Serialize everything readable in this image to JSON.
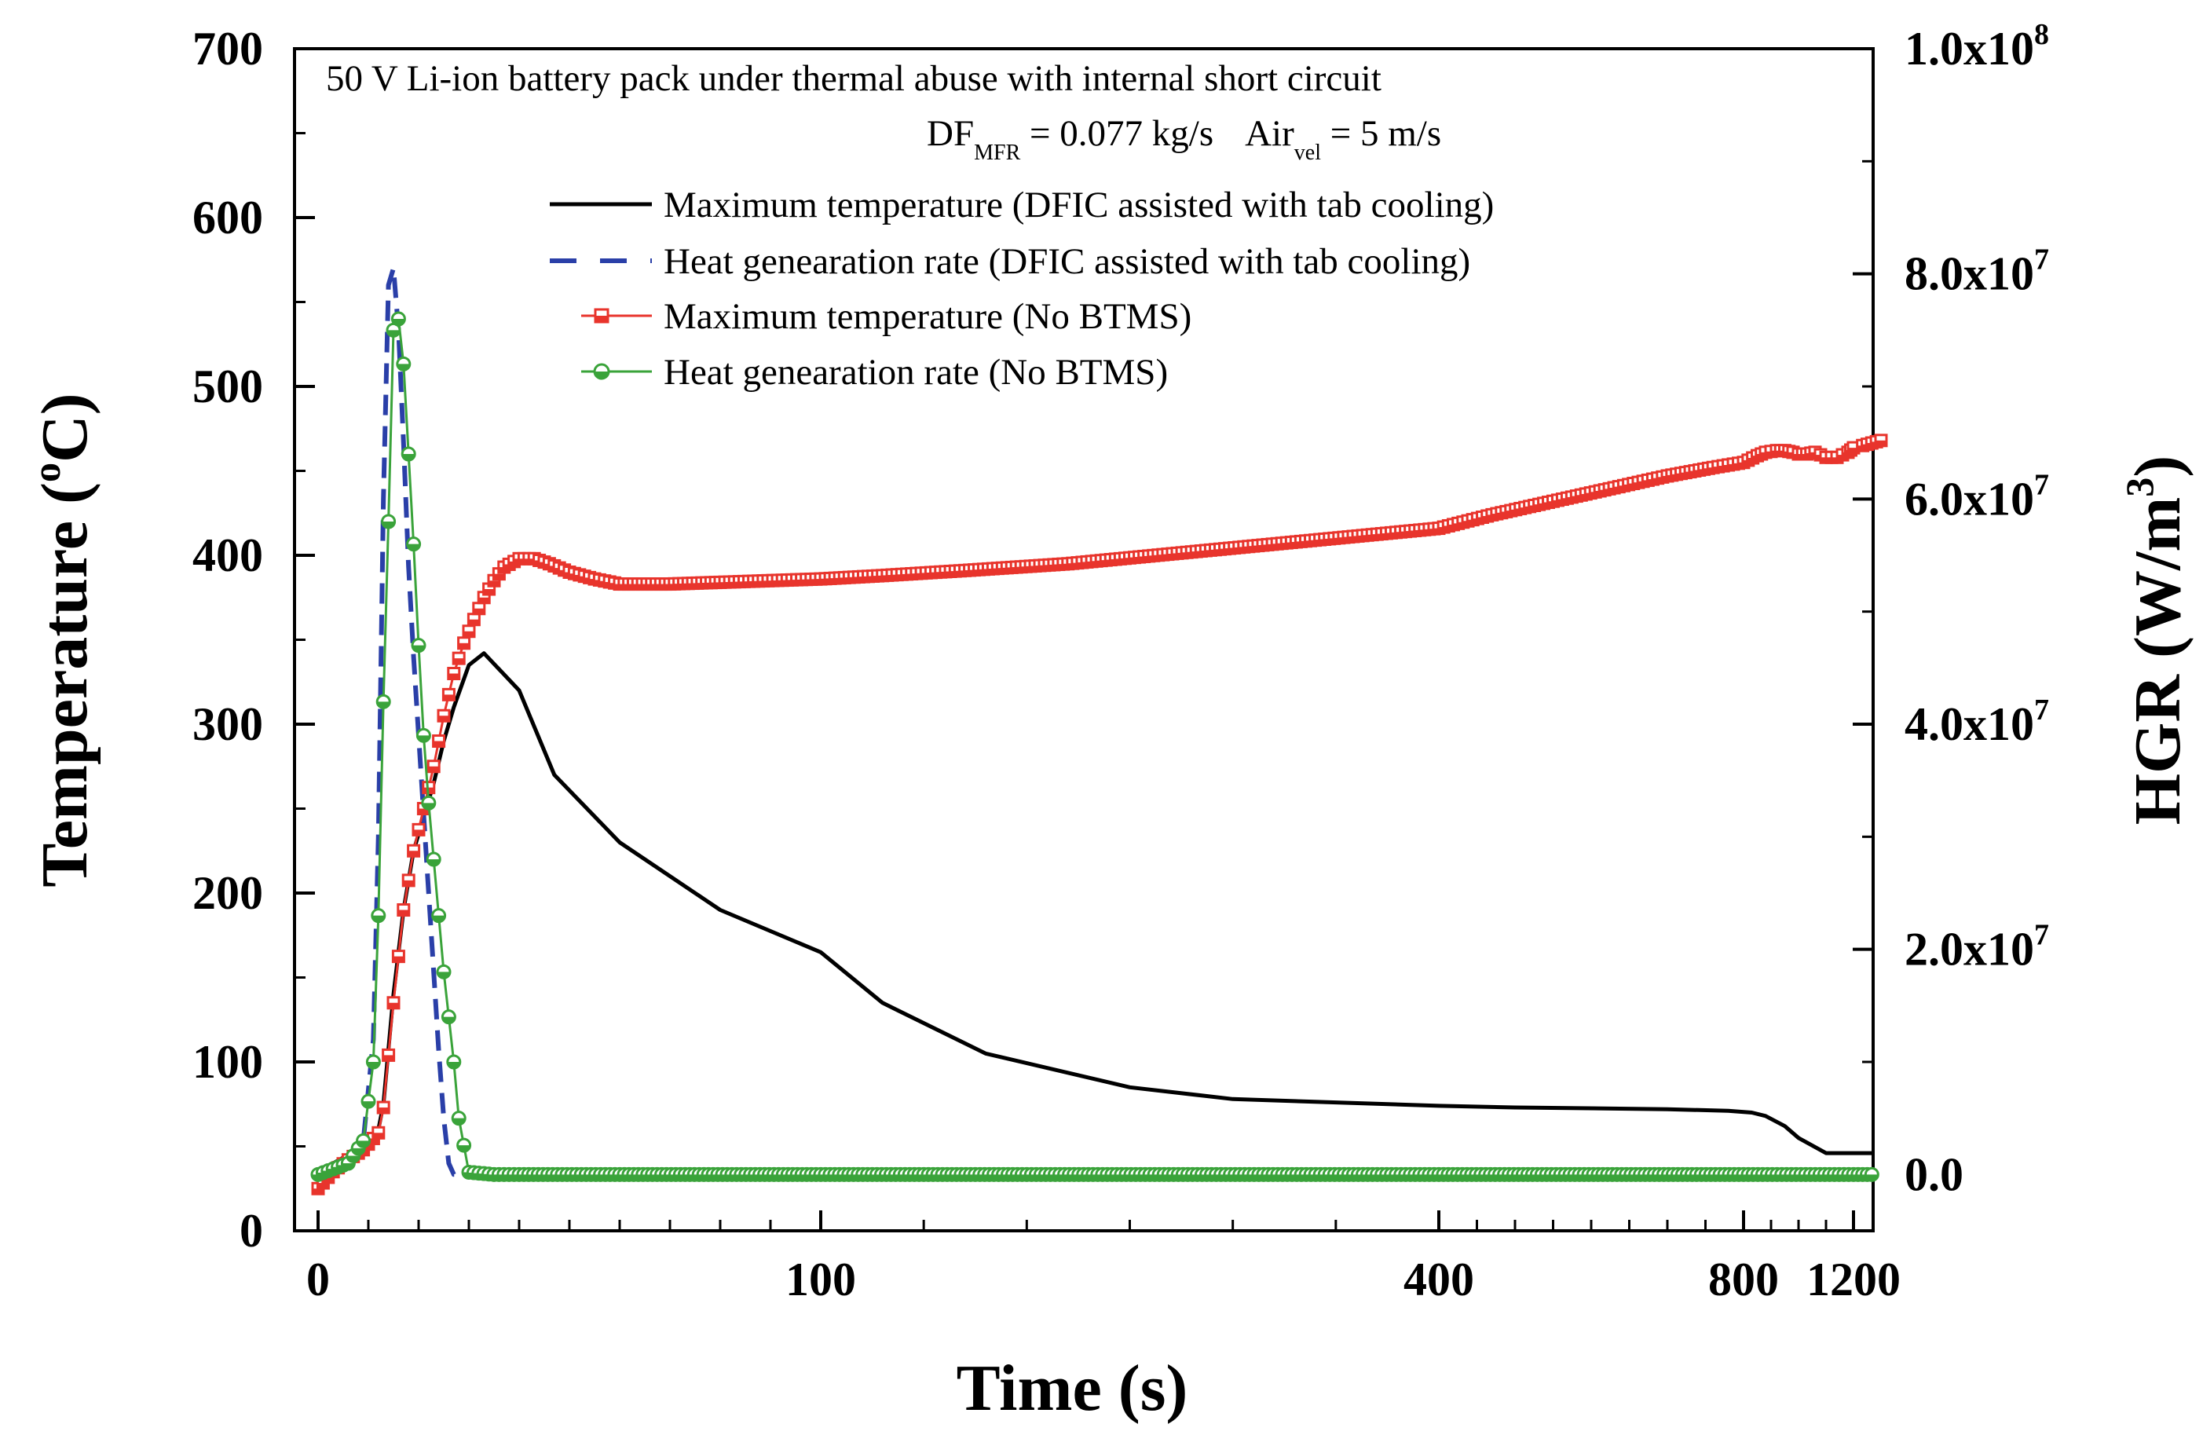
{
  "chart_data": {
    "type": "line",
    "annotation": {
      "line1": "50 V Li-ion battery pack under thermal abuse with internal short circuit",
      "line2_df": "DF",
      "line2_df_sub": "MFR",
      "line2_df_value": " = 0.077 kg/s",
      "line2_air": "Air",
      "line2_air_sub": "vel",
      "line2_air_value": " = 5 m/s"
    },
    "xlabel": "Time (s)",
    "ylabel_left": {
      "main": "Temperature (",
      "sup": "o",
      "end": "C)"
    },
    "ylabel_right": {
      "main": "HGR (W/m",
      "sup": "3",
      "end": ")"
    },
    "x_ticks": [
      {
        "value": 0,
        "label": "0"
      },
      {
        "value": 100,
        "label": "100"
      },
      {
        "value": 400,
        "label": "400"
      },
      {
        "value": 800,
        "label": "800"
      },
      {
        "value": 1200,
        "label": "1200"
      }
    ],
    "x_segments": [
      {
        "from": 0,
        "to": 100,
        "minor_step": 10
      },
      {
        "from": 100,
        "to": 400,
        "minor_step": 50
      },
      {
        "from": 400,
        "to": 800,
        "minor_step": 50
      },
      {
        "from": 800,
        "to": 1200,
        "minor_step": 100
      }
    ],
    "x_range_ext": [
      -3,
      1230
    ],
    "y_left": {
      "range": [
        0,
        700
      ],
      "ticks": [
        0,
        100,
        200,
        300,
        400,
        500,
        600,
        700
      ],
      "labels": [
        "0",
        "100",
        "200",
        "300",
        "400",
        "500",
        "600",
        "700"
      ],
      "minor_step": 50
    },
    "y_right": {
      "range": [
        -5000000,
        100000000
      ],
      "ticks": [
        0,
        20000000,
        40000000,
        60000000,
        80000000,
        100000000
      ],
      "labels": [
        {
          "mantissa": "0.0",
          "exp": ""
        },
        {
          "mantissa": "2.0x10",
          "exp": "7"
        },
        {
          "mantissa": "4.0x10",
          "exp": "7"
        },
        {
          "mantissa": "6.0x10",
          "exp": "7"
        },
        {
          "mantissa": "8.0x10",
          "exp": "7"
        },
        {
          "mantissa": "1.0x10",
          "exp": "8"
        }
      ],
      "minor_step": 10000000
    },
    "legend_position": "top-center",
    "series": [
      {
        "name": "Maximum temperature (DFIC assisted with tab cooling)",
        "axis": "left",
        "style": "solid",
        "color": "#000000",
        "x": [
          0,
          3,
          6,
          9,
          12,
          13,
          15,
          17,
          19,
          21,
          23,
          25,
          27,
          30,
          33,
          40,
          47,
          60,
          80,
          100,
          130,
          180,
          250,
          300,
          400,
          500,
          700,
          780,
          830,
          880,
          950,
          1000,
          1100,
          1180,
          1220
        ],
        "y": [
          30,
          40,
          45,
          50,
          60,
          75,
          140,
          190,
          225,
          245,
          265,
          290,
          310,
          335,
          342,
          320,
          270,
          230,
          190,
          165,
          135,
          105,
          85,
          78,
          74,
          73,
          72,
          71,
          70,
          68,
          62,
          55,
          46,
          46,
          46
        ]
      },
      {
        "name": "Heat genearation rate (DFIC assisted with tab cooling)",
        "axis": "right",
        "style": "dashed",
        "color": "#2a3fa8",
        "x": [
          0,
          3,
          6,
          9,
          11,
          12,
          13,
          14,
          15,
          16,
          17,
          18,
          19,
          20,
          21,
          22,
          23,
          24,
          25,
          26,
          27,
          28,
          30,
          40,
          100,
          400,
          800,
          1200
        ],
        "y": [
          0,
          500000,
          1000000,
          3000000,
          12000000,
          30000000,
          60000000,
          79000000,
          80500000,
          75000000,
          65000000,
          54000000,
          46000000,
          39000000,
          32000000,
          25000000,
          18000000,
          11000000,
          5000000,
          1000000,
          0,
          0,
          0,
          0,
          0,
          0,
          0,
          0
        ]
      },
      {
        "name": "Maximum temperature (No BTMS)",
        "axis": "left",
        "style": "marker-square",
        "color": "#e8342c",
        "x": [
          0,
          3,
          6,
          9,
          12,
          13,
          15,
          17,
          19,
          21,
          23,
          25,
          27,
          29,
          31,
          33,
          35,
          37,
          40,
          43,
          46,
          50,
          55,
          60,
          70,
          80,
          100,
          130,
          170,
          220,
          280,
          340,
          400,
          470,
          550,
          630,
          700,
          760,
          800,
          850,
          880,
          920,
          950,
          980,
          1000,
          1030,
          1060,
          1100,
          1140,
          1180,
          1210,
          1230
        ],
        "y": [
          25,
          35,
          42,
          48,
          58,
          73,
          135,
          190,
          225,
          250,
          275,
          305,
          330,
          348,
          362,
          375,
          385,
          393,
          398,
          398,
          395,
          390,
          386,
          383,
          383,
          384,
          386,
          388,
          391,
          395,
          402,
          409,
          416,
          424,
          432,
          440,
          447,
          452,
          455,
          459,
          461,
          462,
          462,
          461,
          460,
          460,
          461,
          458,
          458,
          461,
          465,
          468
        ]
      },
      {
        "name": "Heat genearation rate (No BTMS)",
        "axis": "right",
        "style": "marker-circle",
        "color": "#3aa33a",
        "x": [
          0,
          3,
          6,
          9,
          11,
          12,
          13,
          14,
          15,
          16,
          17,
          18,
          19,
          20,
          21,
          22,
          23,
          24,
          25,
          26,
          27,
          28,
          30,
          35,
          40,
          60,
          100,
          200,
          400,
          800,
          1200,
          1220
        ],
        "y": [
          0,
          500000,
          1000000,
          3000000,
          10000000,
          23000000,
          42000000,
          58000000,
          75000000,
          76000000,
          72000000,
          64000000,
          56000000,
          47000000,
          39000000,
          33000000,
          28000000,
          23000000,
          18000000,
          14000000,
          10000000,
          5000000,
          200000,
          0,
          0,
          0,
          0,
          0,
          0,
          0,
          0,
          0
        ]
      }
    ]
  }
}
